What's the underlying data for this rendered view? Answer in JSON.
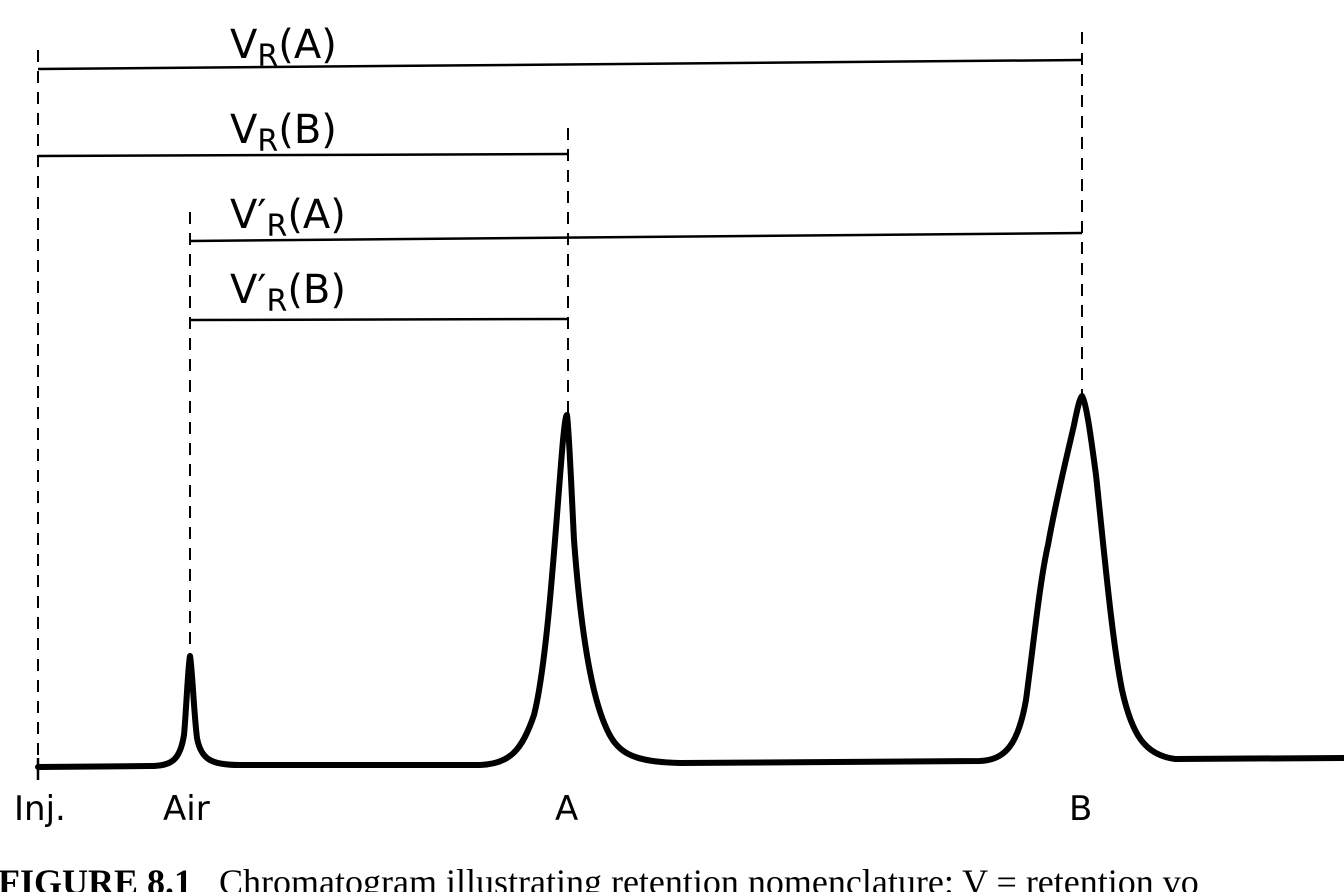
{
  "ranges": [
    {
      "id": "vr_a",
      "main": "V",
      "sub": "R",
      "suffix": "(A)"
    },
    {
      "id": "vr_b",
      "main": "V",
      "sub": "R",
      "suffix": "(B)"
    },
    {
      "id": "vpr_a",
      "main": "V′",
      "sub": "R",
      "suffix": "(A)"
    },
    {
      "id": "vpr_b",
      "main": "V′",
      "sub": "R",
      "suffix": "(B)"
    }
  ],
  "markers": {
    "inj": "Inj.",
    "air": "Air",
    "a": "A",
    "b": "B"
  },
  "caption": {
    "label": "FIGURE 8.1",
    "text": "Chromatogram illustrating retention nomenclature: V  = retention vo"
  },
  "colors": {
    "ink": "#000000",
    "background": "#ffffff"
  }
}
